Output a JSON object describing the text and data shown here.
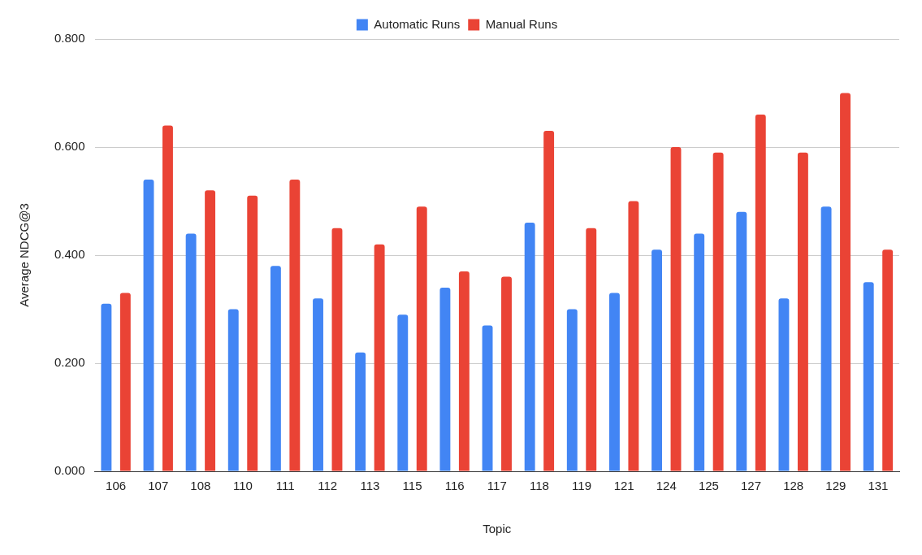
{
  "chart_data": {
    "type": "bar",
    "xlabel": "Topic",
    "ylabel": "Average NDCG@3",
    "categories": [
      "106",
      "107",
      "108",
      "110",
      "111",
      "112",
      "113",
      "115",
      "116",
      "117",
      "118",
      "119",
      "121",
      "124",
      "125",
      "127",
      "128",
      "129",
      "131"
    ],
    "series": [
      {
        "name": "Automatic Runs",
        "color": "#4285f4",
        "values": [
          0.31,
          0.54,
          0.44,
          0.3,
          0.38,
          0.32,
          0.22,
          0.29,
          0.34,
          0.27,
          0.46,
          0.3,
          0.33,
          0.41,
          0.44,
          0.48,
          0.32,
          0.49,
          0.35
        ]
      },
      {
        "name": "Manual Runs",
        "color": "#ea4335",
        "values": [
          0.33,
          0.64,
          0.52,
          0.51,
          0.54,
          0.45,
          0.42,
          0.49,
          0.37,
          0.36,
          0.63,
          0.45,
          0.5,
          0.6,
          0.59,
          0.66,
          0.59,
          0.7,
          0.41
        ]
      }
    ],
    "ylim": [
      0,
      0.8
    ],
    "yticks": [
      {
        "value": 0,
        "label": "0.000"
      },
      {
        "value": 0.2,
        "label": "0.200"
      },
      {
        "value": 0.4,
        "label": "0.400"
      },
      {
        "value": 0.6,
        "label": "0.600"
      },
      {
        "value": 0.8,
        "label": "0.800"
      }
    ],
    "grid": "y",
    "legend": "top"
  }
}
